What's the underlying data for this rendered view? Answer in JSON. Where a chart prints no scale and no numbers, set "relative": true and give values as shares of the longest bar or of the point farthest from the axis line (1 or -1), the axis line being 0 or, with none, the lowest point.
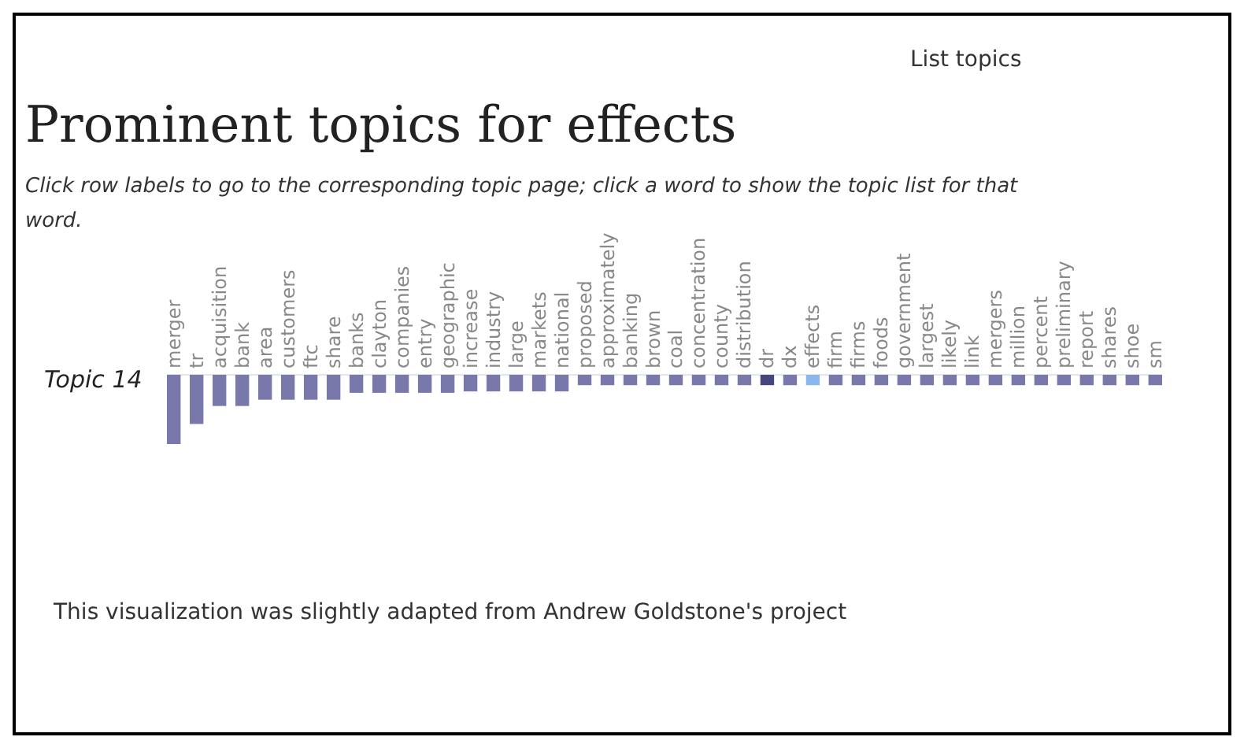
{
  "chart_data": {
    "type": "bar",
    "relative": true,
    "title": "Prominent topics for effects",
    "subtitle": "Click row labels to go to the corresponding topic page; click a word to show the topic list for that word.",
    "ylabel": "Topic 14",
    "annotations": [
      "List topics",
      "This visualization was slightly adapted from Andrew Goldstone's project"
    ],
    "categories": [
      "merger",
      "tr",
      "acquisition",
      "bank",
      "area",
      "customers",
      "ftc",
      "share",
      "banks",
      "clayton",
      "companies",
      "entry",
      "geographic",
      "increase",
      "industry",
      "large",
      "markets",
      "national",
      "proposed",
      "approximately",
      "banking",
      "brown",
      "coal",
      "concentration",
      "county",
      "distribution",
      "dr",
      "dx",
      "effects",
      "firm",
      "firms",
      "foods",
      "government",
      "largest",
      "likely",
      "link",
      "mergers",
      "million",
      "percent",
      "preliminary",
      "report",
      "shares",
      "shoe",
      "sm"
    ],
    "values": [
      -1,
      -0.71,
      -0.45,
      -0.45,
      -0.36,
      -0.36,
      -0.36,
      -0.36,
      -0.26,
      -0.26,
      -0.26,
      -0.26,
      -0.26,
      -0.24,
      -0.24,
      -0.24,
      -0.24,
      -0.24,
      -0.15,
      -0.15,
      -0.15,
      -0.15,
      -0.15,
      -0.15,
      -0.15,
      -0.15,
      -0.15,
      -0.15,
      -0.15,
      -0.15,
      -0.15,
      -0.15,
      -0.15,
      -0.15,
      -0.15,
      -0.15,
      -0.15,
      -0.15,
      -0.15,
      -0.15,
      -0.15,
      -0.15,
      -0.15,
      -0.15
    ],
    "colors": [
      "#7878aa",
      "#7878aa",
      "#7878aa",
      "#7878aa",
      "#7878aa",
      "#7878aa",
      "#7878aa",
      "#7878aa",
      "#7878aa",
      "#7878aa",
      "#7878aa",
      "#7878aa",
      "#7878aa",
      "#7878aa",
      "#7878aa",
      "#7878aa",
      "#7878aa",
      "#7878aa",
      "#7878aa",
      "#7878aa",
      "#7878aa",
      "#7878aa",
      "#7878aa",
      "#7878aa",
      "#7878aa",
      "#7878aa",
      "#46467e",
      "#7878aa",
      "#8ab8ee",
      "#7878aa",
      "#7878aa",
      "#7878aa",
      "#7878aa",
      "#7878aa",
      "#7878aa",
      "#7878aa",
      "#7878aa",
      "#7878aa",
      "#7878aa",
      "#7878aa",
      "#7878aa",
      "#7878aa",
      "#7878aa",
      "#7878aa"
    ]
  }
}
